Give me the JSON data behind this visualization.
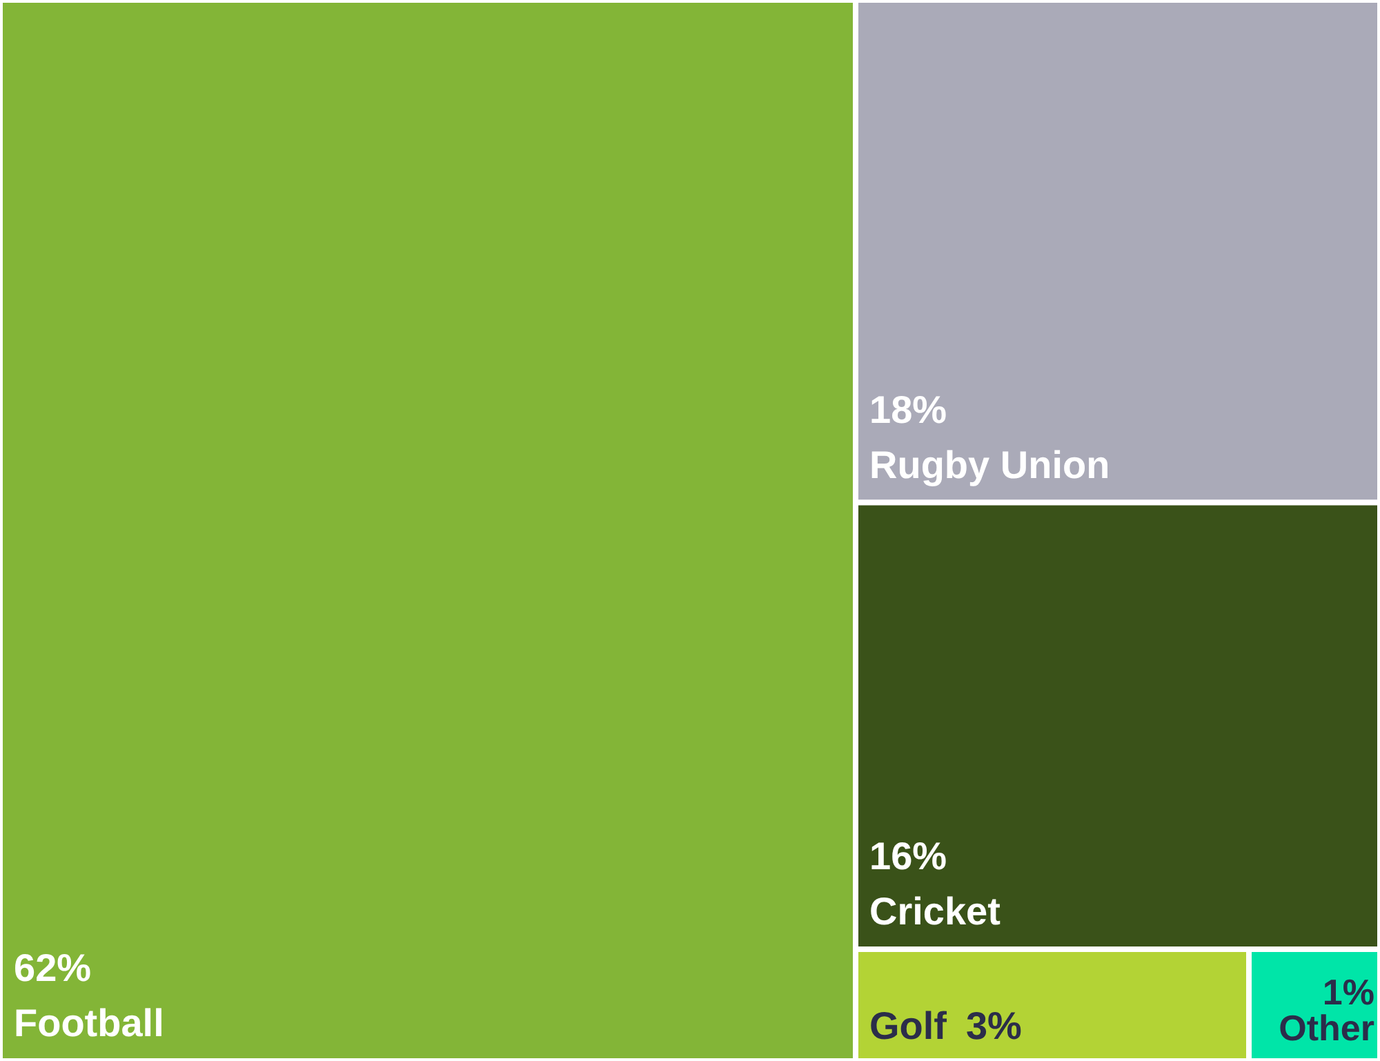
{
  "chart_data": {
    "type": "other",
    "categories": [
      "Football",
      "Rugby Union",
      "Cricket",
      "Golf",
      "Other"
    ],
    "values": [
      62,
      18,
      16,
      3,
      1
    ],
    "value_labels": [
      "62%",
      "18%",
      "16%",
      "3%",
      "1%"
    ],
    "colors": [
      "#83b537",
      "#aaaab8",
      "#3a5219",
      "#b3d335",
      "#00e5a8"
    ]
  }
}
